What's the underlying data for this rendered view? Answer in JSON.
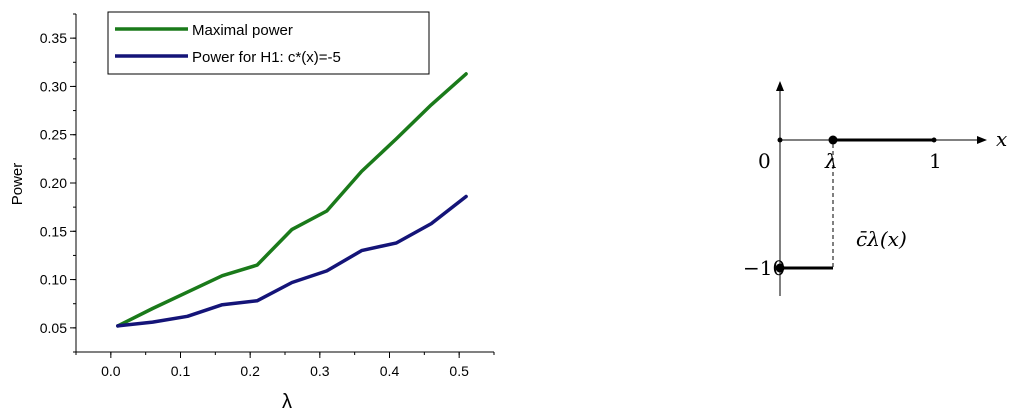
{
  "chart_data": {
    "type": "line",
    "xlabel": "λ",
    "ylabel": "Power",
    "xlim": [
      -0.05,
      0.55
    ],
    "ylim": [
      0.025,
      0.375
    ],
    "xticks": [
      "0.0",
      "0.1",
      "0.2",
      "0.3",
      "0.4",
      "0.5"
    ],
    "yticks": [
      "0.05",
      "0.10",
      "0.15",
      "0.20",
      "0.25",
      "0.30",
      "0.35"
    ],
    "grid": false,
    "legend_position": "top-left",
    "series": [
      {
        "name": "Maximal power",
        "color": "#1a7a1a",
        "x": [
          0.01,
          0.06,
          0.11,
          0.16,
          0.21,
          0.26,
          0.31,
          0.36,
          0.41,
          0.46,
          0.51
        ],
        "values": [
          0.052,
          0.07,
          0.087,
          0.104,
          0.115,
          0.152,
          0.171,
          0.212,
          0.246,
          0.281,
          0.313
        ]
      },
      {
        "name": "Power for H1: c*(x)=-5",
        "color": "#141478",
        "x": [
          0.01,
          0.06,
          0.11,
          0.16,
          0.21,
          0.26,
          0.31,
          0.36,
          0.41,
          0.46,
          0.51
        ],
        "values": [
          0.052,
          0.056,
          0.062,
          0.074,
          0.078,
          0.097,
          0.109,
          0.13,
          0.138,
          0.158,
          0.186
        ]
      }
    ]
  },
  "diagram": {
    "x_axis_label": "x",
    "origin_label": "0",
    "lambda_label": "λ",
    "one_label": "1",
    "minus_ten_label": "−10",
    "function_label": "c̄λ(x)"
  }
}
